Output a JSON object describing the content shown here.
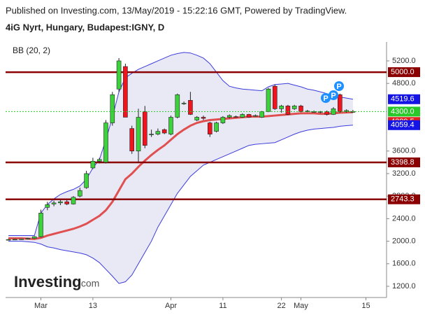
{
  "chart_data": {
    "type": "candlestick",
    "published": "Published on Investing.com, 13/May/2019 - 15:22:16 GMT, Powered by TradingView.",
    "title": "4iG Nyrt, Hungary, Budapest:IGNY, D",
    "indicator": "BB (20, 2)",
    "logo": "Investing",
    "logo_suffix": ".com",
    "categories": [
      null,
      null,
      null,
      null,
      null,
      "Mar",
      null,
      null,
      null,
      null,
      null,
      null,
      null,
      "13",
      null,
      null,
      null,
      null,
      null,
      null,
      null,
      null,
      null,
      null,
      null,
      "Apr",
      null,
      null,
      null,
      null,
      null,
      null,
      null,
      "11",
      null,
      null,
      null,
      null,
      null,
      null,
      null,
      null,
      "22",
      null,
      null,
      "May",
      null,
      null,
      null,
      null,
      null,
      null,
      null,
      null,
      null,
      "15"
    ],
    "open": [
      2030,
      2030,
      2035,
      2040,
      2050,
      2080,
      2600,
      2660,
      2680,
      2700,
      2660,
      2800,
      2950,
      3300,
      3420,
      3400,
      4100,
      4700,
      5100,
      4000,
      3600,
      4300,
      3900,
      3900,
      3980,
      3900,
      4200,
      4450,
      4500,
      4150,
      4200,
      4100,
      3950,
      4100,
      4200,
      4210,
      4200,
      4250,
      4230,
      4200,
      4300,
      4750,
      4350,
      4400,
      4350,
      4400,
      4310,
      4300,
      4300,
      4300,
      4250,
      4600,
      4300,
      4290,
      null,
      null
    ],
    "high": [
      2040,
      2040,
      2045,
      2060,
      2090,
      2560,
      2700,
      2720,
      2740,
      2730,
      2800,
      2950,
      3250,
      3480,
      3480,
      4150,
      4650,
      5250,
      5150,
      4050,
      4350,
      4400,
      3980,
      4000,
      4000,
      4230,
      4620,
      4480,
      4650,
      4220,
      4230,
      4120,
      4120,
      4220,
      4250,
      4230,
      4270,
      4260,
      4250,
      4310,
      4720,
      4780,
      4420,
      4420,
      4420,
      4420,
      4330,
      4320,
      4310,
      4320,
      4380,
      4620,
      4340,
      4330,
      null,
      null
    ],
    "low": [
      2020,
      2020,
      2025,
      2030,
      2040,
      2070,
      2550,
      2620,
      2640,
      2640,
      2650,
      2780,
      2930,
      3280,
      3380,
      3380,
      4050,
      4650,
      4200,
      3550,
      3400,
      3650,
      3850,
      3880,
      3900,
      3880,
      4180,
      4420,
      4240,
      4130,
      4150,
      3850,
      3930,
      4080,
      4180,
      4190,
      4190,
      4190,
      4210,
      4190,
      4290,
      4330,
      4280,
      4240,
      4330,
      4290,
      4290,
      4280,
      4270,
      4230,
      4240,
      4280,
      4280,
      4280,
      null,
      null
    ],
    "close": [
      2030,
      2035,
      2040,
      2050,
      2080,
      2500,
      2650,
      2680,
      2700,
      2660,
      2780,
      2900,
      3200,
      3420,
      3450,
      4100,
      4600,
      5200,
      4200,
      3600,
      4200,
      3700,
      3900,
      3950,
      3920,
      4200,
      4600,
      4450,
      4250,
      4200,
      4180,
      3900,
      4100,
      4200,
      4230,
      4200,
      4250,
      4200,
      4230,
      4300,
      4700,
      4350,
      4400,
      4250,
      4400,
      4300,
      4310,
      4300,
      4300,
      4250,
      4350,
      4300,
      4320,
      4300,
      null,
      null
    ],
    "up_color": "#3cd23c",
    "down_color": "#f0141e",
    "bands": [
      {
        "color": "#3c3cdc",
        "values": [
          2100,
          2100,
          2100,
          2100,
          2100,
          2500,
          2650,
          2750,
          2830,
          2880,
          2920,
          2980,
          3100,
          3300,
          3450,
          3800,
          4200,
          4650,
          4900,
          4980,
          5050,
          5100,
          5150,
          5200,
          5250,
          5300,
          5330,
          5350,
          5340,
          5300,
          5250,
          5150,
          5000,
          4850,
          4750,
          4720,
          4700,
          4690,
          4680,
          4670,
          4740,
          4780,
          4790,
          4800,
          4770,
          4740,
          4700,
          4680,
          4650,
          4620,
          4580,
          4560,
          4540,
          4519.6,
          null,
          null
        ]
      },
      {
        "color": "#e05050",
        "values": [
          2050,
          2050,
          2050,
          2045,
          2040,
          2060,
          2100,
          2130,
          2160,
          2190,
          2220,
          2260,
          2310,
          2380,
          2450,
          2550,
          2700,
          2900,
          3100,
          3200,
          3320,
          3430,
          3530,
          3620,
          3700,
          3800,
          3900,
          3980,
          4050,
          4100,
          4130,
          4150,
          4160,
          4170,
          4180,
          4190,
          4200,
          4210,
          4210,
          4210,
          4220,
          4230,
          4240,
          4250,
          4260,
          4270,
          4270,
          4270,
          4260,
          4260,
          4270,
          4280,
          4285,
          4289.5,
          null,
          null
        ]
      },
      {
        "color": "#3c3cdc",
        "values": [
          2000,
          2000,
          2000,
          1990,
          1980,
          1950,
          1900,
          1880,
          1850,
          1830,
          1810,
          1790,
          1760,
          1700,
          1620,
          1500,
          1380,
          1250,
          1280,
          1400,
          1600,
          1800,
          2000,
          2250,
          2450,
          2650,
          2850,
          3000,
          3150,
          3250,
          3350,
          3400,
          3450,
          3500,
          3550,
          3600,
          3650,
          3700,
          3720,
          3730,
          3740,
          3750,
          3800,
          3850,
          3900,
          3940,
          3970,
          3990,
          4000,
          4010,
          4020,
          4040,
          4050,
          4059.4,
          null,
          null
        ]
      }
    ],
    "band_fill": "#e4e4f4",
    "horizontal_lines": [
      {
        "value": 5000,
        "label": "5000.0"
      },
      {
        "value": 3398.8,
        "label": "3398.8"
      },
      {
        "value": 2743.3,
        "label": "2743.3"
      }
    ],
    "horizontal_line_color": "#8b0000",
    "price_tags": [
      {
        "value": 4519.6,
        "label": "4519.6",
        "color": "#1414e6"
      },
      {
        "value": 4300,
        "label": "4300.0",
        "color": "#28c828"
      },
      {
        "value": 4289.5,
        "label": "4289.5",
        "color": "#e02020"
      },
      {
        "value": 4059.4,
        "label": "4059.4",
        "color": "#1414e6"
      }
    ],
    "event_markers": [
      "P",
      "P",
      "P"
    ],
    "ylim": [
      1001,
      5473
    ],
    "yticks": [
      {
        "value": 1200,
        "label": "1200.0"
      },
      {
        "value": 1600,
        "label": "1600.0"
      },
      {
        "value": 2000,
        "label": "2000.0"
      },
      {
        "value": 2400,
        "label": "2400.0"
      },
      {
        "value": 2800,
        "label": "2800.0"
      },
      {
        "value": 3200,
        "label": "3200.0"
      },
      {
        "value": 3600,
        "label": "3600.0"
      },
      {
        "value": 4800,
        "label": "4800.0"
      },
      {
        "value": 5200,
        "label": "5200.0"
      }
    ]
  }
}
